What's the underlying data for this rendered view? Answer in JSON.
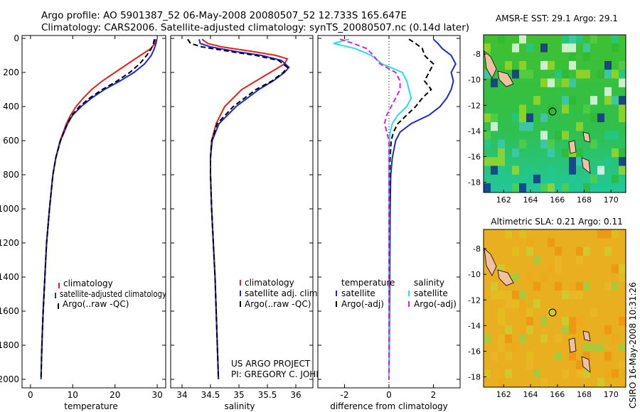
{
  "header": {
    "line1": "Argo profile: AO 5901387_52 06-May-2008 20080507_52 12.733S 165.647E",
    "line2": "Climatology: CARS2006. Satellite-adjusted climatology: synTS_20080507.nc (0.14d later)"
  },
  "colors": {
    "climatology": "#e8201a",
    "satellite": "#1a2ad0",
    "argo": "#000000",
    "sal_satellite": "#22e0e8",
    "sal_argo": "#e020d8",
    "land": "#f0c0a0"
  },
  "chart_data": [
    {
      "type": "line",
      "name": "temperature-panel",
      "xlabel": "temperature",
      "ylabel": "",
      "xlim": [
        -2,
        32
      ],
      "ylim": [
        2050,
        0
      ],
      "y_inverted": true,
      "xticks": [
        "0",
        "10",
        "20",
        "30"
      ],
      "yticks": [
        "0",
        "200",
        "400",
        "600",
        "800",
        "1000",
        "1200",
        "1400",
        "1600",
        "1800",
        "2000"
      ],
      "legend": [
        "climatology",
        "satellite-adjusted climatology",
        "Argo(..raw -QC)"
      ],
      "series": [
        {
          "name": "climatology",
          "color": "#e8201a",
          "dash": false,
          "pressure": [
            5,
            30,
            60,
            100,
            150,
            200,
            250,
            300,
            350,
            400,
            450,
            500,
            600,
            700,
            800,
            1000,
            1200,
            1400,
            1600,
            1800,
            1880
          ],
          "values": [
            29.6,
            29.4,
            28.5,
            26.0,
            23.0,
            20.0,
            17.0,
            14.5,
            12.5,
            10.8,
            9.5,
            8.5,
            7.0,
            6.0,
            5.3,
            4.5,
            3.8,
            3.4,
            3.0,
            2.7,
            2.6
          ]
        },
        {
          "name": "satellite-adjusted",
          "color": "#1a2ad0",
          "dash": false,
          "pressure": [
            5,
            30,
            60,
            100,
            150,
            200,
            250,
            300,
            350,
            400,
            450,
            500,
            600,
            700,
            800,
            1000,
            1200,
            1400,
            1600,
            1800,
            2000
          ],
          "values": [
            29.9,
            29.7,
            29.3,
            28.6,
            27.0,
            24.5,
            21.2,
            17.5,
            14.5,
            12.0,
            10.0,
            8.8,
            7.1,
            6.0,
            5.3,
            4.5,
            3.8,
            3.4,
            3.0,
            2.7,
            2.5
          ]
        },
        {
          "name": "Argo",
          "color": "#000000",
          "dash": true,
          "pressure": [
            5,
            30,
            60,
            100,
            150,
            200,
            250,
            300,
            350,
            400,
            450,
            500,
            600,
            700,
            800,
            1000,
            1200,
            1400,
            1600,
            1800,
            2000
          ],
          "values": [
            29.3,
            29.1,
            28.6,
            27.5,
            25.8,
            23.5,
            20.5,
            17.0,
            14.0,
            11.6,
            9.8,
            8.7,
            7.1,
            6.0,
            5.3,
            4.5,
            3.8,
            3.4,
            3.0,
            2.7,
            2.5
          ]
        }
      ]
    },
    {
      "type": "line",
      "name": "salinity-panel",
      "xlabel": "salinity",
      "xlim": [
        33.8,
        36.3
      ],
      "ylim": [
        2050,
        0
      ],
      "y_inverted": true,
      "xticks": [
        "34",
        "34.5",
        "35",
        "35.5",
        "36"
      ],
      "legend": [
        "climatology",
        "satellite adj. clim.",
        "Argo(..raw -QC)"
      ],
      "series": [
        {
          "name": "climatology",
          "color": "#e8201a",
          "dash": false,
          "pressure": [
            5,
            30,
            50,
            80,
            100,
            120,
            150,
            200,
            250,
            300,
            400,
            500,
            600,
            700,
            800,
            1000,
            1200,
            1400,
            1600,
            1800,
            2000
          ],
          "values": [
            34.35,
            34.45,
            34.7,
            35.3,
            35.65,
            35.85,
            35.8,
            35.55,
            35.3,
            35.05,
            34.75,
            34.6,
            34.52,
            34.5,
            34.5,
            34.52,
            34.55,
            34.58,
            34.6,
            34.62,
            34.64
          ]
        },
        {
          "name": "satellite-adjusted",
          "color": "#1a2ad0",
          "dash": false,
          "pressure": [
            5,
            30,
            50,
            80,
            100,
            130,
            170,
            200,
            250,
            300,
            400,
            500,
            600,
            700,
            800,
            1000,
            1200,
            1400,
            1600,
            1800,
            2000
          ],
          "values": [
            34.3,
            34.32,
            34.5,
            35.0,
            35.4,
            35.75,
            35.88,
            35.8,
            35.6,
            35.35,
            34.95,
            34.65,
            34.53,
            34.5,
            34.5,
            34.52,
            34.55,
            34.58,
            34.6,
            34.62,
            34.64
          ]
        },
        {
          "name": "Argo",
          "color": "#000000",
          "dash": true,
          "pressure": [
            5,
            30,
            50,
            80,
            100,
            130,
            170,
            200,
            250,
            300,
            400,
            500,
            600,
            700,
            800,
            1000,
            1200,
            1400,
            1600,
            1800,
            2000
          ],
          "values": [
            34.1,
            34.15,
            34.35,
            34.9,
            35.3,
            35.7,
            35.85,
            35.78,
            35.58,
            35.3,
            34.9,
            34.62,
            34.52,
            34.5,
            34.5,
            34.52,
            34.55,
            34.58,
            34.6,
            34.62,
            34.64
          ]
        }
      ]
    },
    {
      "type": "line",
      "name": "difference-panel",
      "xlabel": "difference from climatology",
      "xlim": [
        -3.2,
        3.2
      ],
      "ylim": [
        2050,
        0
      ],
      "y_inverted": true,
      "xticks": [
        "-2",
        "0",
        "2"
      ],
      "legend": [
        "temperature",
        "satellite",
        "Argo(-adj)",
        "salinity",
        "satellite",
        "Argo(-adj)"
      ],
      "series": [
        {
          "name": "temperature satellite",
          "color": "#1a2ad0",
          "dash": false,
          "pressure": [
            5,
            30,
            60,
            100,
            150,
            200,
            250,
            300,
            350,
            400,
            450,
            500,
            550,
            600,
            700,
            800,
            1000,
            1500,
            2000
          ],
          "values": [
            2.0,
            2.2,
            2.4,
            2.8,
            3.0,
            2.8,
            2.9,
            2.8,
            2.6,
            2.3,
            1.8,
            1.0,
            0.5,
            0.3,
            0.15,
            0.08,
            0.05,
            0.03,
            0.0
          ]
        },
        {
          "name": "temperature Argo",
          "color": "#000000",
          "dash": true,
          "pressure": [
            5,
            30,
            60,
            100,
            150,
            200,
            250,
            300,
            350,
            400,
            450,
            500,
            550,
            600,
            700,
            800,
            1000,
            1500,
            2000
          ],
          "values": [
            0.9,
            1.2,
            1.5,
            1.6,
            2.0,
            1.8,
            1.6,
            1.9,
            1.5,
            1.2,
            0.8,
            0.4,
            0.2,
            0.1,
            0.05,
            0.03,
            0.02,
            0.01,
            0.0
          ]
        },
        {
          "name": "salinity satellite",
          "color": "#22e0e8",
          "dash": false,
          "pressure": [
            5,
            30,
            60,
            100,
            150,
            200,
            250,
            300,
            350,
            400,
            450,
            500,
            550,
            600,
            700,
            800,
            1000,
            1500,
            2000
          ],
          "values": [
            -1.8,
            -2.5,
            -1.5,
            -0.8,
            -0.3,
            0.6,
            0.8,
            0.9,
            1.0,
            0.8,
            0.4,
            0.15,
            0.05,
            0.02,
            0.01,
            0.0,
            0.0,
            0.0,
            0.0
          ]
        },
        {
          "name": "salinity Argo",
          "color": "#e020d8",
          "dash": true,
          "pressure": [
            5,
            30,
            60,
            100,
            150,
            200,
            250,
            300,
            350,
            400,
            450,
            500,
            550,
            600,
            700,
            800,
            1000,
            1500,
            2000
          ],
          "values": [
            -2.2,
            -1.6,
            -1.0,
            -0.7,
            -0.4,
            0.3,
            0.5,
            0.5,
            0.3,
            0.1,
            -0.1,
            -0.2,
            -0.1,
            0.0,
            0.0,
            0.0,
            0.0,
            0.0,
            0.0
          ]
        }
      ]
    }
  ],
  "legend_titles": {
    "temperature": "temperature",
    "salinity": "salinity"
  },
  "maps": {
    "sst": {
      "title": "AMSR-E SST: 29.1 Argo: 29.1",
      "xticks": [
        "162",
        "164",
        "166",
        "168",
        "170"
      ],
      "yticks": [
        "-8",
        "-10",
        "-12",
        "-14",
        "-16",
        "-18"
      ]
    },
    "sla": {
      "title": "Altimetric SLA: 0.21 Argo: 0.11",
      "xticks": [
        "162",
        "164",
        "166",
        "168",
        "170"
      ],
      "yticks": [
        "-8",
        "-10",
        "-12",
        "-14",
        "-16",
        "-18"
      ]
    }
  },
  "credit": {
    "project": "US ARGO PROJECT",
    "pi": "PI: GREGORY C. JOHNSON"
  },
  "side_stamp": "CSIRO 16-May-2008 10:31:26"
}
